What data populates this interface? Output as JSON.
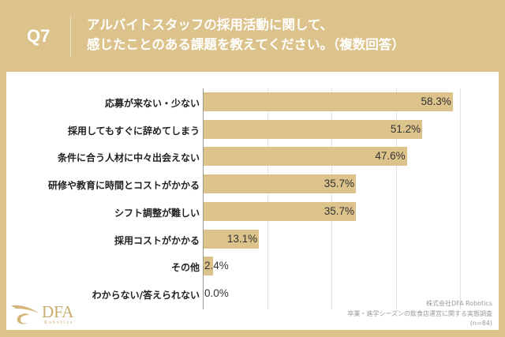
{
  "header": {
    "question": "Q7",
    "title_line1": "アルバイトスタッフの採用活動に関して、",
    "title_line2": "感じたことのある課題を教えてください。（複数回答）"
  },
  "colors": {
    "bar": "#dcc28b",
    "background": "#dcc28b"
  },
  "chart_data": {
    "type": "bar",
    "orientation": "horizontal",
    "categories": [
      "応募が来ない・少ない",
      "採用してもすぐに辞めてしまう",
      "条件に合う人材に中々出会えない",
      "研修や教育に時間とコストがかかる",
      "シフト調整が難しい",
      "採用コストがかかる",
      "その他",
      "わからない/答えられない"
    ],
    "values": [
      58.3,
      51.2,
      47.6,
      35.7,
      35.7,
      13.1,
      2.4,
      0.0
    ],
    "value_labels": [
      "58.3%",
      "51.2%",
      "47.6%",
      "35.7%",
      "35.7%",
      "13.1%",
      "2.4%",
      "0.0%"
    ],
    "xlim": [
      0,
      60
    ],
    "gridlines": [
      15,
      30,
      45,
      60
    ],
    "grid": true,
    "unit": "%"
  },
  "footer": {
    "company": "株式会社DFA Robotics",
    "survey": "卒業・進学シーズンの飲食店運営に関する実態調査",
    "sample": "(n=84)"
  },
  "logo": {
    "name": "DFA",
    "sub": "Robotics"
  }
}
